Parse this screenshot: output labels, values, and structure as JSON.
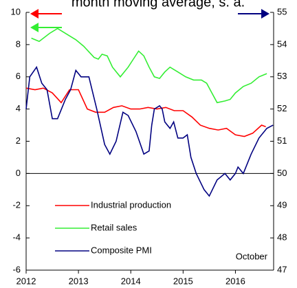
{
  "chart_data": {
    "type": "line",
    "title": "month moving average, s. a.",
    "annotation": "October",
    "xlim": [
      2012,
      2016.73
    ],
    "xticks": [
      2012,
      2013,
      2014,
      2015,
      2016
    ],
    "ylim": [
      -6,
      10
    ],
    "yticks": [
      -6,
      -4,
      -2,
      0,
      2,
      4,
      6,
      8,
      10
    ],
    "y2lim": [
      47,
      55
    ],
    "y2ticks": [
      47,
      48,
      49,
      50,
      51,
      52,
      53,
      54,
      55
    ],
    "grid": false,
    "legend": "lower left",
    "series": [
      {
        "name": "Industrial production",
        "color": "#ff0000",
        "x": [
          2012.0,
          2012.17,
          2012.33,
          2012.5,
          2012.67,
          2012.83,
          2013.0,
          2013.17,
          2013.33,
          2013.5,
          2013.67,
          2013.83,
          2014.0,
          2014.17,
          2014.33,
          2014.5,
          2014.67,
          2014.83,
          2015.0,
          2015.17,
          2015.33,
          2015.5,
          2015.67,
          2015.83,
          2016.0,
          2016.17,
          2016.33,
          2016.5,
          2016.58
        ],
        "values": [
          5.3,
          5.2,
          5.3,
          5.0,
          4.4,
          5.2,
          5.2,
          4.0,
          3.8,
          3.8,
          4.1,
          4.2,
          4.0,
          4.0,
          4.1,
          4.0,
          4.1,
          3.9,
          3.9,
          3.5,
          3.0,
          2.8,
          2.7,
          2.8,
          2.4,
          2.3,
          2.5,
          3.0,
          2.9
        ]
      },
      {
        "name": "Retail sales",
        "color": "#33ee33",
        "x": [
          2012.1,
          2012.25,
          2012.45,
          2012.6,
          2012.8,
          2012.95,
          2013.1,
          2013.3,
          2013.38,
          2013.45,
          2013.55,
          2013.65,
          2013.8,
          2013.95,
          2014.05,
          2014.15,
          2014.25,
          2014.35,
          2014.45,
          2014.55,
          2014.65,
          2014.75,
          2014.9,
          2015.05,
          2015.2,
          2015.35,
          2015.45,
          2015.55,
          2015.65,
          2015.8,
          2015.9,
          2016.0,
          2016.15,
          2016.3,
          2016.45,
          2016.6
        ],
        "values": [
          8.4,
          8.2,
          8.7,
          9.0,
          8.6,
          8.3,
          7.9,
          7.2,
          7.1,
          7.4,
          7.3,
          6.6,
          6.0,
          6.6,
          7.1,
          7.6,
          7.3,
          6.6,
          6.0,
          5.9,
          6.3,
          6.6,
          6.3,
          6.0,
          5.8,
          5.8,
          5.6,
          5.0,
          4.4,
          4.5,
          4.6,
          5.0,
          5.4,
          5.6,
          6.0,
          6.2
        ]
      },
      {
        "name": "Composite PMI",
        "color": "#000080",
        "axis": "y2",
        "x": [
          2012.0,
          2012.07,
          2012.2,
          2012.3,
          2012.4,
          2012.5,
          2012.6,
          2012.75,
          2012.85,
          2012.95,
          2013.05,
          2013.2,
          2013.35,
          2013.5,
          2013.6,
          2013.72,
          2013.85,
          2013.95,
          2014.1,
          2014.25,
          2014.35,
          2014.4,
          2014.45,
          2014.55,
          2014.6,
          2014.65,
          2014.75,
          2014.82,
          2014.9,
          2015.0,
          2015.08,
          2015.15,
          2015.25,
          2015.4,
          2015.5,
          2015.65,
          2015.8,
          2015.9,
          2016.0,
          2016.05,
          2016.15,
          2016.3,
          2016.45,
          2016.6,
          2016.72
        ],
        "values": [
          52.0,
          53.0,
          53.3,
          52.8,
          52.6,
          51.7,
          51.7,
          52.3,
          52.6,
          53.2,
          53.0,
          53.0,
          52.0,
          50.9,
          50.6,
          51.0,
          51.9,
          51.8,
          51.3,
          50.6,
          50.7,
          51.5,
          52.0,
          52.1,
          52.0,
          51.6,
          51.4,
          51.6,
          51.1,
          51.1,
          51.2,
          50.5,
          50.0,
          49.5,
          49.3,
          49.8,
          50.0,
          49.8,
          50.0,
          50.2,
          50.0,
          50.6,
          51.1,
          51.4,
          51.5
        ]
      }
    ]
  }
}
